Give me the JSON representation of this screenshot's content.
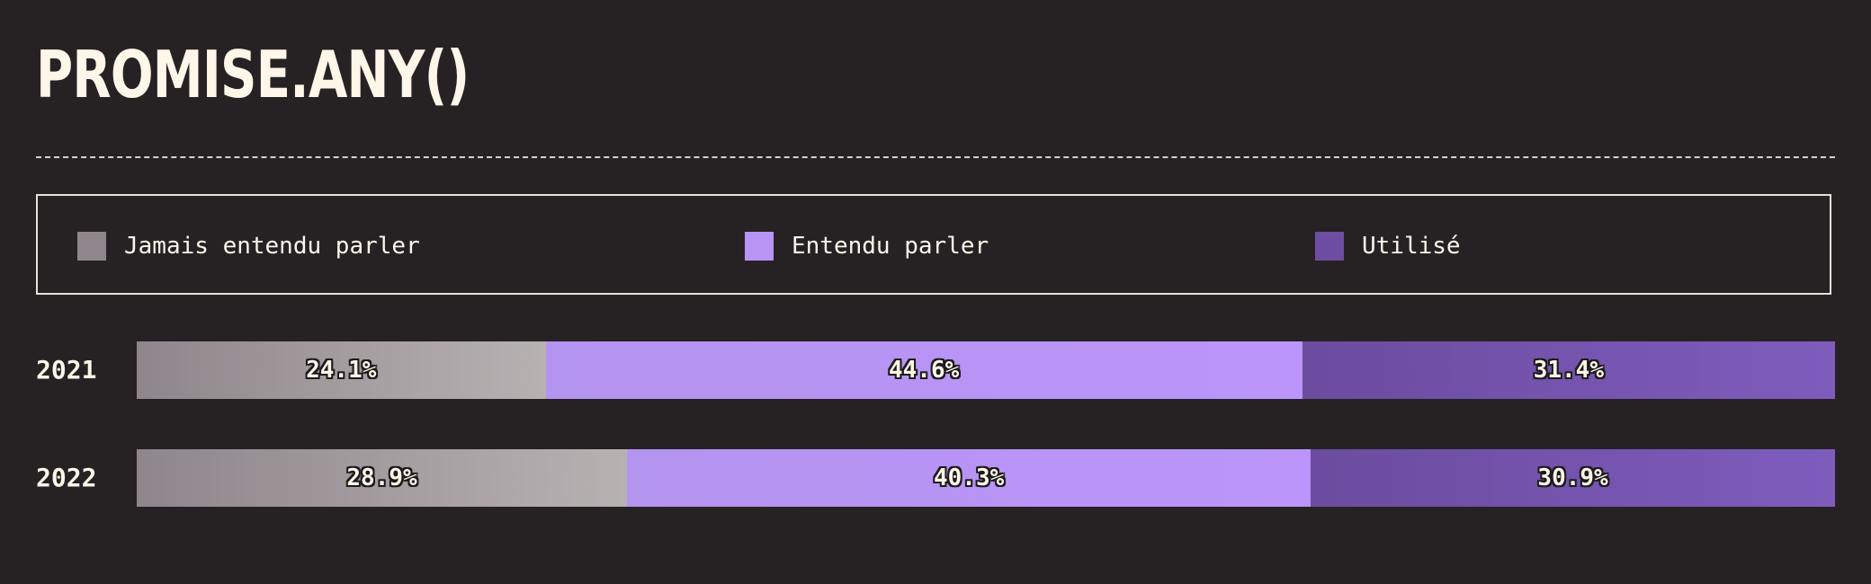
{
  "header": {
    "title": "PROMISE.ANY()"
  },
  "legend": {
    "items": [
      {
        "label": "Jamais entendu parler",
        "color": "#8f868b"
      },
      {
        "label": "Entendu parler",
        "color": "#b894f5"
      },
      {
        "label": "Utilisé",
        "color": "#6e4ea3"
      }
    ]
  },
  "chart_data": {
    "type": "bar",
    "orientation": "horizontal",
    "stacked": true,
    "normalized": true,
    "title": "PROMISE.ANY()",
    "categories": [
      "2021",
      "2022"
    ],
    "series": [
      {
        "name": "Jamais entendu parler",
        "values": [
          24.1,
          28.9
        ],
        "labels": [
          "24.1%",
          "28.9%"
        ],
        "color": "#8f868b"
      },
      {
        "name": "Entendu parler",
        "values": [
          44.6,
          40.3
        ],
        "labels": [
          "44.6%",
          "40.3%"
        ],
        "color": "#b894f5"
      },
      {
        "name": "Utilisé",
        "values": [
          31.4,
          30.9
        ],
        "labels": [
          "31.4%",
          "30.9%"
        ],
        "color": "#6e4ea3"
      }
    ],
    "xlim": [
      0,
      100
    ],
    "grid": false,
    "legend_position": "top"
  }
}
